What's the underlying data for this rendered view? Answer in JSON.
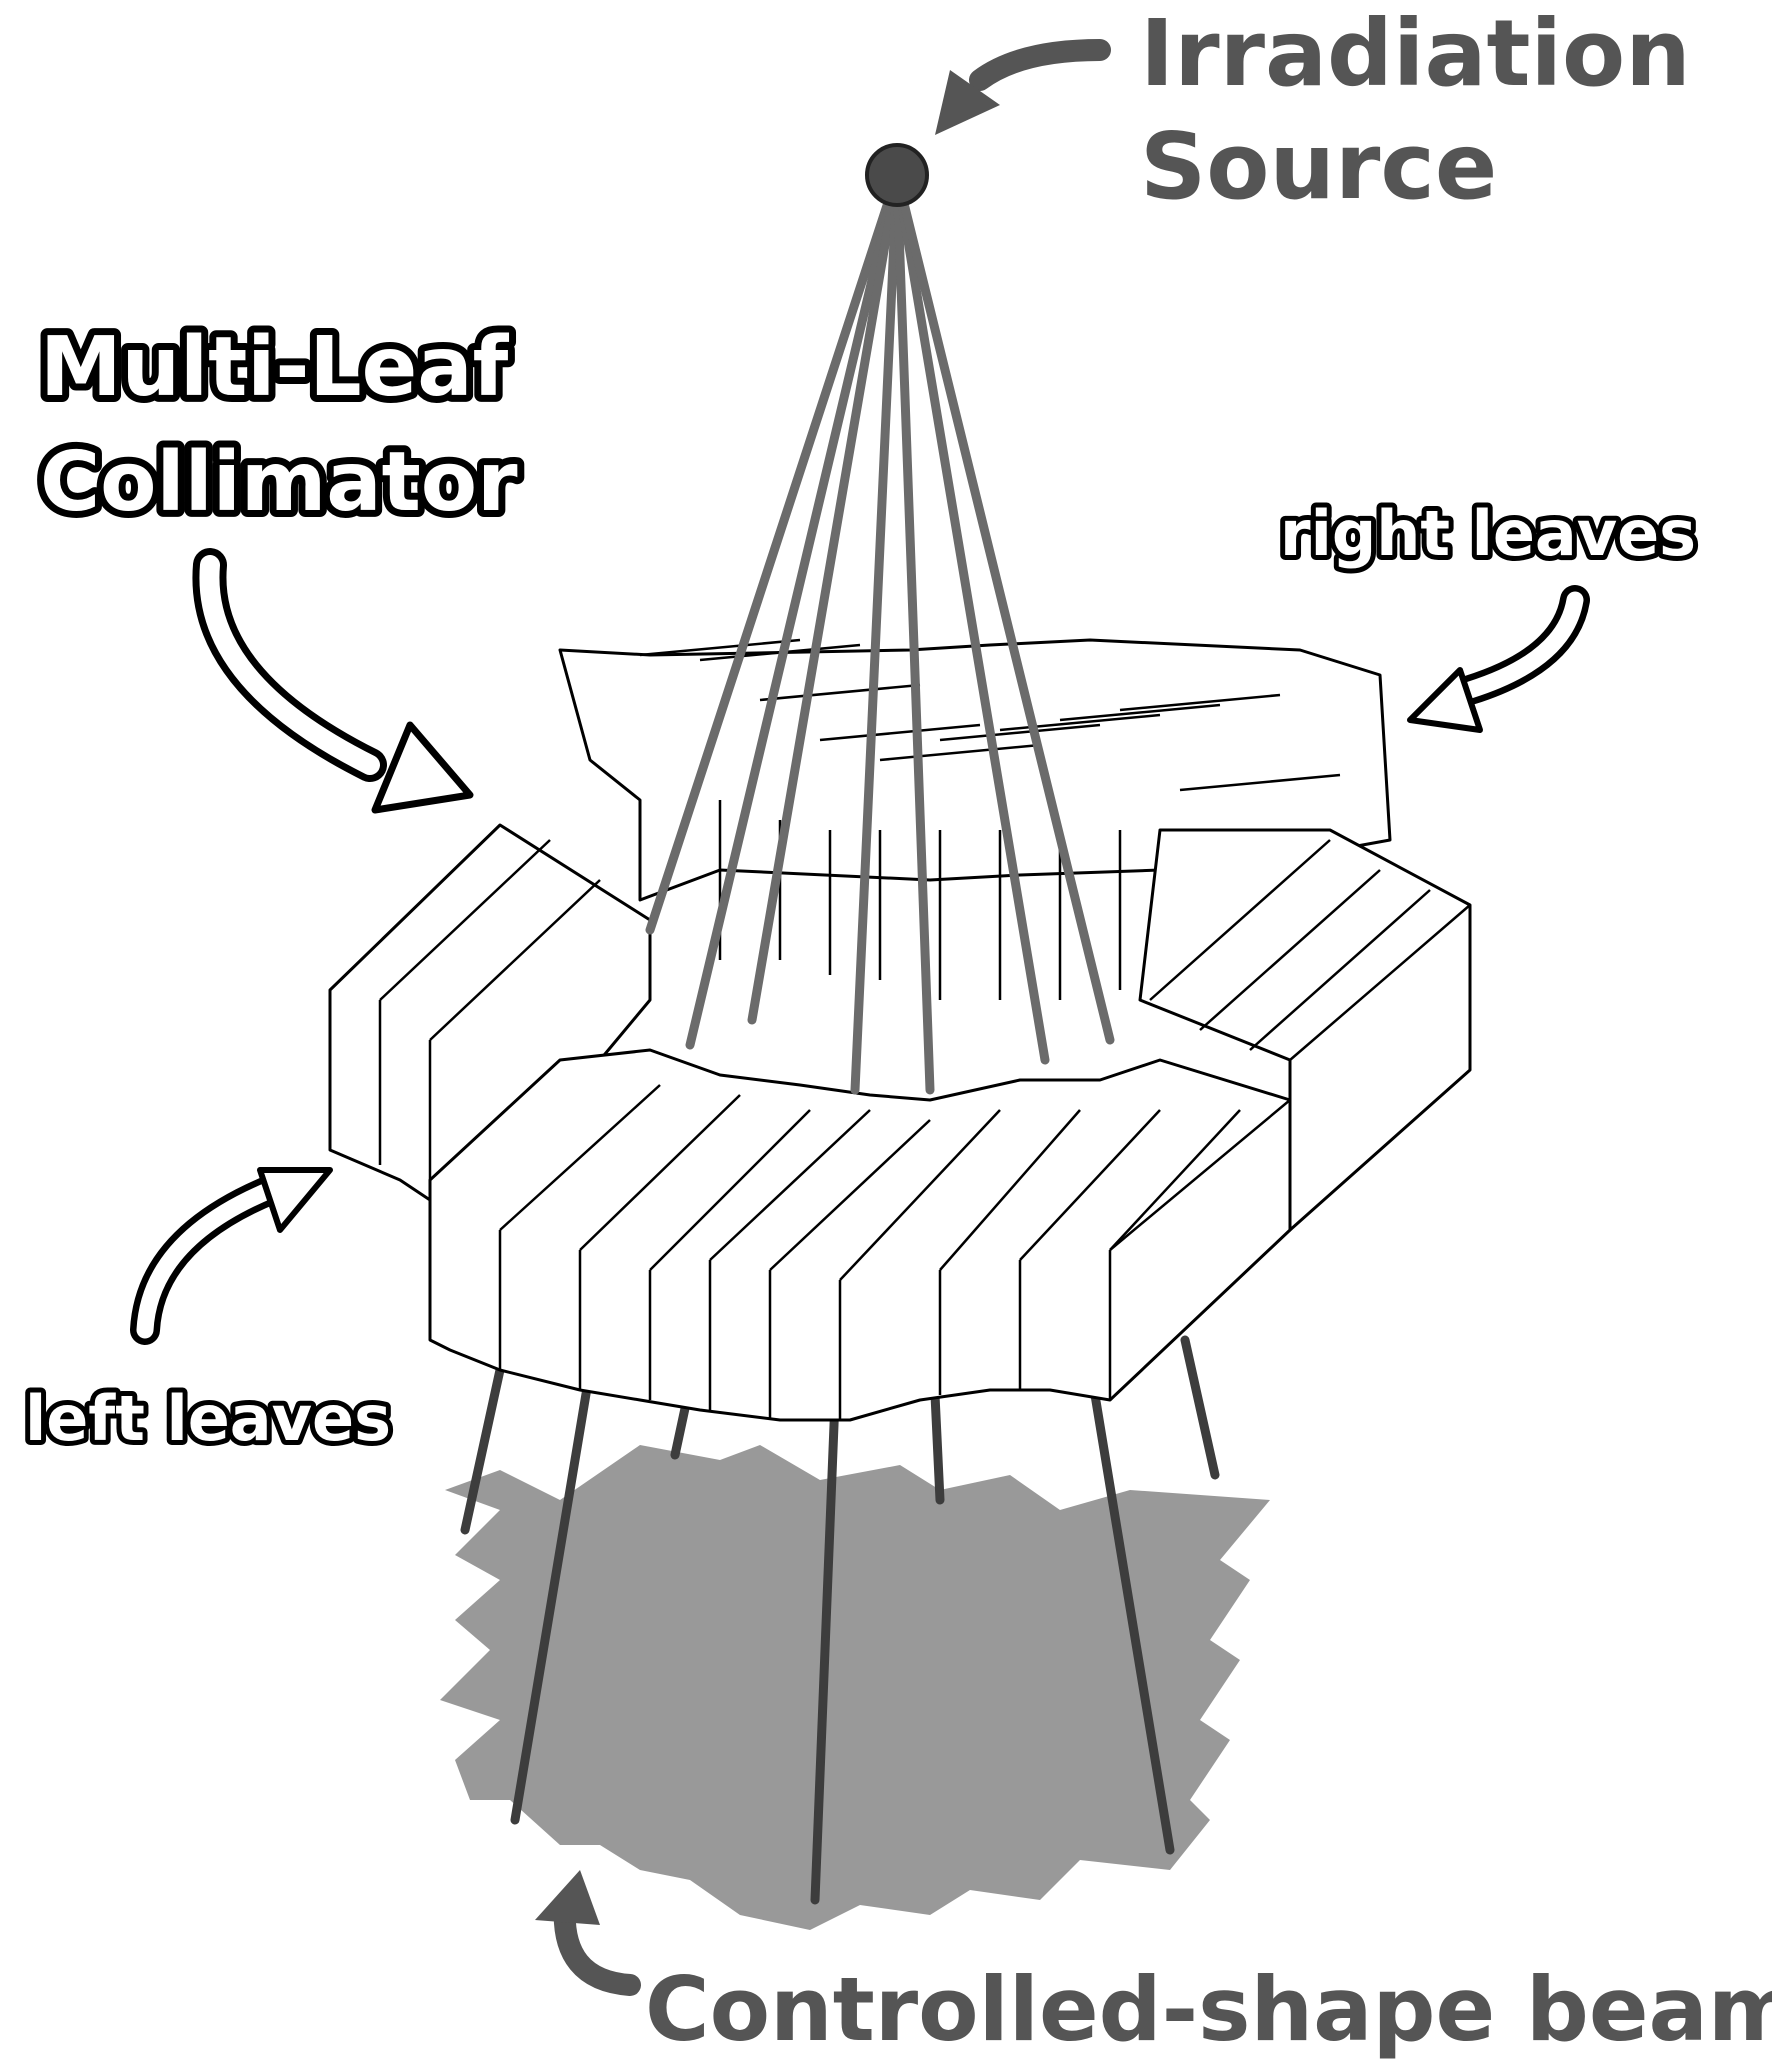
{
  "labels": {
    "source_line1": "Irradiation",
    "source_line2": "Source",
    "mlc_line1": "Multi-Leaf",
    "mlc_line2": "Collimator",
    "right_leaves": "right leaves",
    "left_leaves": "left leaves",
    "beam": "Controlled-shape beam"
  },
  "colors": {
    "beam_shadow": "#999999",
    "source_dot": "#4a4a4a",
    "label_grey": "#555555",
    "ray_grey": "#6b6b6b"
  },
  "icons": {
    "source_arrow": "curved-arrow-icon",
    "mlc_arrow": "curved-outline-arrow-icon",
    "right_arrow": "curved-outline-arrow-icon",
    "left_arrow": "curved-outline-arrow-icon",
    "beam_arrow": "curved-arrow-icon"
  }
}
